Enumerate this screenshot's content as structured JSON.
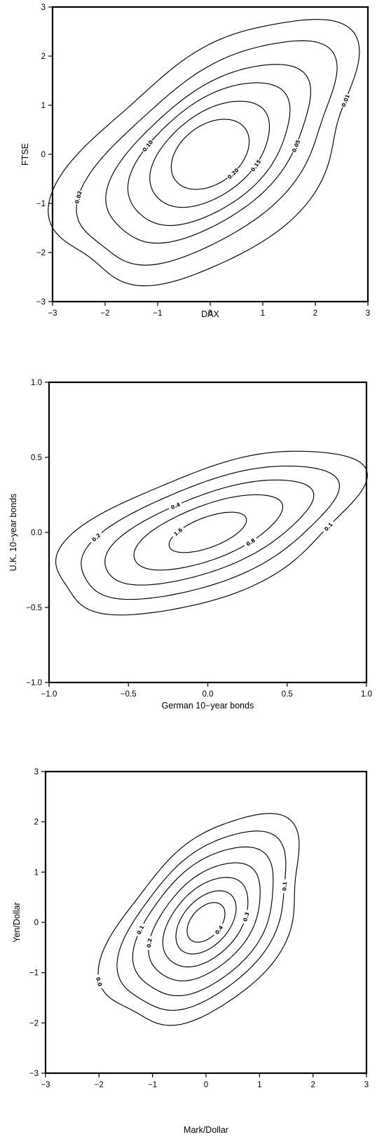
{
  "chart_data": [
    {
      "type": "contour",
      "xlabel": "DAX",
      "ylabel": "FTSE",
      "xlim": [
        -3,
        3
      ],
      "ylim": [
        -3,
        3
      ],
      "x_ticks": [
        -3,
        -2,
        -1,
        0,
        1,
        2,
        3
      ],
      "y_ticks": [
        -3,
        -2,
        -1,
        0,
        1,
        2,
        3
      ],
      "x_tick_labels": [
        "−3",
        "−2",
        "−1",
        "0",
        "1",
        "2",
        "3"
      ],
      "y_tick_labels": [
        "−3",
        "−2",
        "−1",
        "0",
        "1",
        "2",
        "3"
      ],
      "angle_deg": 42,
      "contours": [
        {
          "level": "0.01",
          "a": 3.4,
          "b": 1.9,
          "wobble": 0.07,
          "label_at": -0.55,
          "show_label": true
        },
        {
          "level": "0.02",
          "a": 2.95,
          "b": 1.5,
          "wobble": 0.05,
          "label_at": 2.45,
          "show_label": true
        },
        {
          "level": "0.05",
          "a": 2.35,
          "b": 1.22,
          "wobble": 0.03,
          "label_at": -0.95,
          "show_label": true
        },
        {
          "level": "0.10",
          "a": 1.85,
          "b": 1.02,
          "wobble": 0.02,
          "label_at": 2.0,
          "show_label": true
        },
        {
          "level": "0.15",
          "a": 1.35,
          "b": 0.8,
          "wobble": 0.01,
          "label_at": -1.2,
          "show_label": true
        },
        {
          "level": "0.20",
          "a": 0.85,
          "b": 0.58,
          "wobble": 0.0,
          "label_at": -1.5,
          "show_label": true
        }
      ]
    },
    {
      "type": "contour",
      "xlabel": "German 10−year bonds",
      "ylabel": "U.K. 10−year bonds",
      "xlim": [
        -1.0,
        1.0
      ],
      "ylim": [
        -1.0,
        1.0
      ],
      "x_ticks": [
        -1.0,
        -0.5,
        0.0,
        0.5,
        1.0
      ],
      "y_ticks": [
        -1.0,
        -0.5,
        0.0,
        0.5,
        1.0
      ],
      "x_tick_labels": [
        "−1.0",
        "−0.5",
        "0.0",
        "0.5",
        "1.0"
      ],
      "y_tick_labels": [
        "−1.0",
        "−0.5",
        "0.0",
        "0.5",
        "1.0"
      ],
      "angle_deg": 22,
      "contours": [
        {
          "level": "0.1",
          "a": 1.02,
          "b": 0.42,
          "wobble": 0.05,
          "label_at": -0.7,
          "show_label": true
        },
        {
          "level": "0.2",
          "a": 0.86,
          "b": 0.33,
          "wobble": 0.03,
          "label_at": 2.4,
          "show_label": true
        },
        {
          "level": "0.4",
          "a": 0.7,
          "b": 0.25,
          "wobble": 0.02,
          "label_at": 1.75,
          "show_label": true
        },
        {
          "level": "0.8",
          "a": 0.5,
          "b": 0.18,
          "wobble": 0.01,
          "label_at": -1.1,
          "show_label": true
        },
        {
          "level": "1.6",
          "a": 0.26,
          "b": 0.1,
          "wobble": 0.0,
          "label_at": 2.3,
          "show_label": true
        }
      ]
    },
    {
      "type": "contour",
      "xlabel": "Mark/Dollar",
      "ylabel": "Yen/Dollar",
      "xlim": [
        -3,
        3
      ],
      "ylim": [
        -3,
        3
      ],
      "x_ticks": [
        -3,
        -2,
        -1,
        0,
        1,
        2,
        3
      ],
      "y_ticks": [
        -3,
        -2,
        -1,
        0,
        1,
        2,
        3
      ],
      "x_tick_labels": [
        "−3",
        "−2",
        "−1",
        "0",
        "1",
        "2",
        "3"
      ],
      "y_tick_labels": [
        "−3",
        "−2",
        "−1",
        "0",
        "1",
        "2",
        "3"
      ],
      "angle_deg": 52,
      "contours": [
        {
          "level": "0.0",
          "a": 2.4,
          "b": 1.4,
          "wobble": 0.06,
          "label_at": 2.55,
          "show_label": true
        },
        {
          "level": "0.1",
          "a": 2.05,
          "b": 1.18,
          "wobble": 0.04,
          "label_at": -0.7,
          "show_label": true
        },
        {
          "level": "0.1",
          "a": 1.7,
          "b": 1.0,
          "wobble": 0.03,
          "label_at": 2.1,
          "show_label": true
        },
        {
          "level": "0.2",
          "a": 1.35,
          "b": 0.8,
          "wobble": 0.02,
          "label_at": 2.35,
          "show_label": true
        },
        {
          "level": "0.3",
          "a": 1.02,
          "b": 0.62,
          "wobble": 0.01,
          "label_at": -1.0,
          "show_label": true
        },
        {
          "level": "0.4",
          "a": 0.72,
          "b": 0.44,
          "wobble": 0.0,
          "label_at": -1.3,
          "show_label": false
        },
        {
          "level": "0.4",
          "a": 0.45,
          "b": 0.28,
          "wobble": 0.0,
          "label_at": -1.5,
          "show_label": true
        }
      ]
    }
  ]
}
